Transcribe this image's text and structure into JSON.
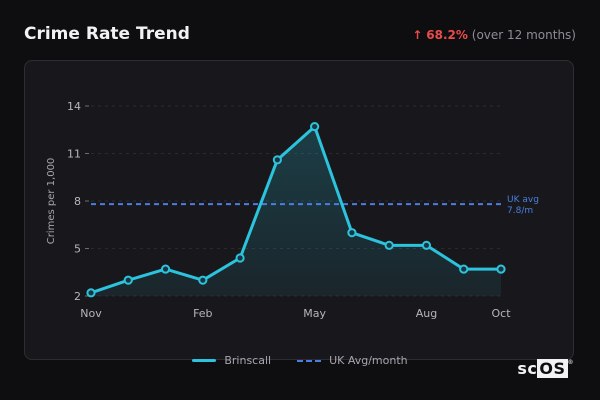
{
  "header": {
    "title": "Crime Rate Trend",
    "change_arrow": "↑",
    "change_pct": "68.2%",
    "change_period": "(over 12 months)"
  },
  "logo": {
    "text_sc": "sc",
    "text_os": "OS",
    "reg": "®"
  },
  "colors": {
    "series": "#2cc3dc",
    "avg": "#4a7ee0",
    "up": "#ec4b4b"
  },
  "chart_data": {
    "type": "area",
    "ylabel": "Crimes per 1,000",
    "ylim": [
      2,
      14
    ],
    "yticks": [
      2,
      5,
      8,
      11,
      14
    ],
    "ytick_labels": [
      "2",
      "5",
      "8",
      "11",
      "14"
    ],
    "xtick_labels": [
      "Nov",
      "Feb",
      "May",
      "Aug",
      "Oct"
    ],
    "xtick_index": [
      0,
      3,
      6,
      9,
      11
    ],
    "grid": true,
    "legend_placement": "bottom",
    "x": [
      "Nov",
      "Dec",
      "Jan",
      "Feb",
      "Mar",
      "Apr",
      "May",
      "Jun",
      "Jul",
      "Aug",
      "Sep",
      "Oct"
    ],
    "series": [
      {
        "name": "Brinscall",
        "values": [
          2.2,
          3.0,
          3.7,
          3.0,
          4.4,
          10.6,
          12.7,
          6.0,
          5.2,
          5.2,
          3.7,
          3.7
        ]
      }
    ],
    "reference_line": {
      "name": "UK Avg/month",
      "value": 7.8,
      "label_line1": "UK avg",
      "label_line2": "7.8/m"
    }
  }
}
